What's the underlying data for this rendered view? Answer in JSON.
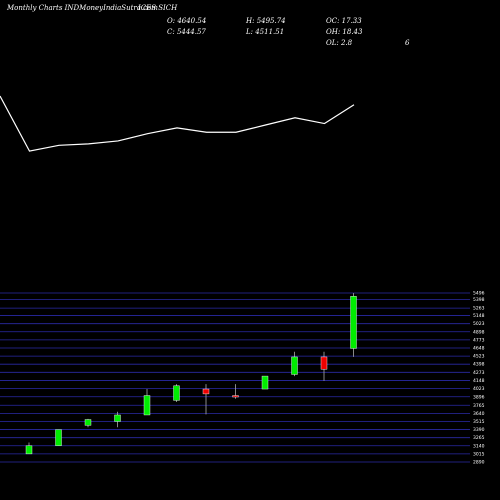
{
  "header": {
    "source": "Monthly Charts INDMoneyIndiaSutra.com",
    "symbol": "ICES SICH",
    "open": "O: 4640.54",
    "high": "H: 5495.74",
    "oc": "OC: 17.33",
    "close": "C: 5444.57",
    "low": "L: 4511.51",
    "oh": "OH: 18.43",
    "ol": "OL: 2.8",
    "extra": "6"
  },
  "chart_data": {
    "type": "candlestick",
    "yticks": [
      5496,
      5398,
      5263,
      5148,
      5023,
      4898,
      4773,
      4648,
      4523,
      4398,
      4273,
      4148,
      4023,
      3896,
      3765,
      3640,
      3515,
      3390,
      3265,
      3140,
      3015,
      2890
    ],
    "ylim": [
      2890,
      5496
    ],
    "candles": [
      {
        "open": 3015,
        "close": 3140,
        "high": 3190,
        "low": 3015
      },
      {
        "open": 3140,
        "close": 3390,
        "high": 3390,
        "low": 3140
      },
      {
        "open": 3455,
        "close": 3545,
        "high": 3555,
        "low": 3425
      },
      {
        "open": 3515,
        "close": 3615,
        "high": 3665,
        "low": 3425
      },
      {
        "open": 3615,
        "close": 3915,
        "high": 4015,
        "low": 3615
      },
      {
        "open": 3840,
        "close": 4065,
        "high": 4090,
        "low": 3815
      },
      {
        "open": 4015,
        "close": 3940,
        "high": 4090,
        "low": 3625
      },
      {
        "open": 3915,
        "close": 3895,
        "high": 4090,
        "low": 3865
      },
      {
        "open": 4015,
        "close": 4215,
        "high": 4215,
        "low": 4015
      },
      {
        "open": 4240,
        "close": 4510,
        "high": 4590,
        "low": 4215
      },
      {
        "open": 4510,
        "close": 4320,
        "high": 4590,
        "low": 4140
      },
      {
        "open": 4640.54,
        "close": 5444.57,
        "high": 5495.74,
        "low": 4511.51
      }
    ],
    "line": [
      4.0,
      2.1,
      2.3,
      2.35,
      2.45,
      2.7,
      2.9,
      2.75,
      2.75,
      3.0,
      3.25,
      3.05,
      3.7
    ],
    "colors": {
      "up": "#00ee00",
      "down": "#ee0000",
      "line": "#ffffff",
      "grid": "#2a2aa6",
      "wick": "#aaaaaa"
    }
  }
}
